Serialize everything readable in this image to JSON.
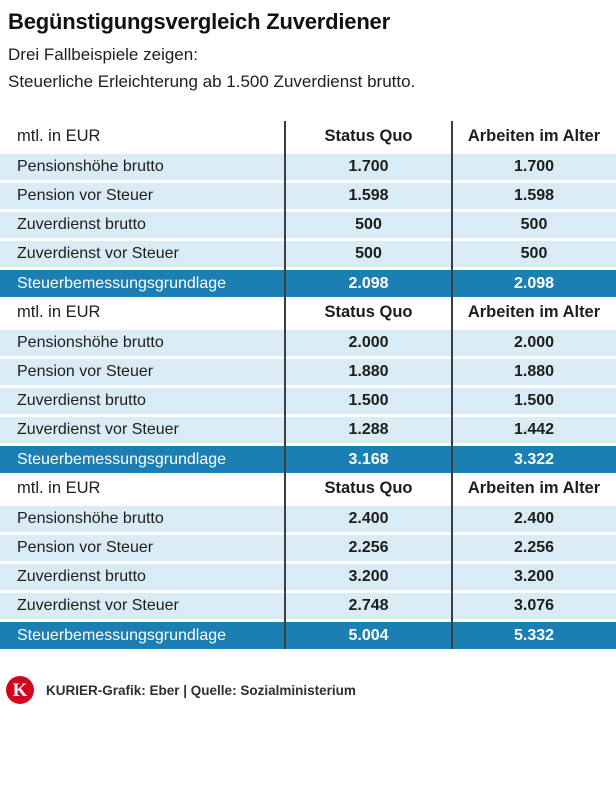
{
  "header": {
    "title": "Begünstigungsvergleich Zuverdiener",
    "subtitle_lines": [
      "Drei Fallbeispiele zeigen:",
      "Steuerliche Erleichterung ab 1.500 Zuverdienst brutto."
    ]
  },
  "columns": {
    "label": "mtl. in EUR",
    "col1": "Status Quo",
    "col2": "Arbeiten im Alter"
  },
  "tables": [
    {
      "rows": [
        {
          "label": "Pensionshöhe brutto",
          "values": [
            "1.700",
            "1.700"
          ]
        },
        {
          "label": "Pension vor Steuer",
          "values": [
            "1.598",
            "1.598"
          ]
        },
        {
          "label": "Zuverdienst brutto",
          "values": [
            "500",
            "500"
          ]
        },
        {
          "label": "Zuverdienst vor Steuer",
          "values": [
            "500",
            "500"
          ]
        },
        {
          "label": "Steuerbemessungsgrundlage",
          "values": [
            "2.098",
            "2.098"
          ]
        }
      ]
    },
    {
      "rows": [
        {
          "label": "Pensionshöhe brutto",
          "values": [
            "2.000",
            "2.000"
          ]
        },
        {
          "label": "Pension vor Steuer",
          "values": [
            "1.880",
            "1.880"
          ]
        },
        {
          "label": "Zuverdienst brutto",
          "values": [
            "1.500",
            "1.500"
          ]
        },
        {
          "label": "Zuverdienst vor Steuer",
          "values": [
            "1.288",
            "1.442"
          ]
        },
        {
          "label": "Steuerbemessungsgrundlage",
          "values": [
            "3.168",
            "3.322"
          ]
        }
      ]
    },
    {
      "rows": [
        {
          "label": "Pensionshöhe brutto",
          "values": [
            "2.400",
            "2.400"
          ]
        },
        {
          "label": "Pension vor Steuer",
          "values": [
            "2.256",
            "2.256"
          ]
        },
        {
          "label": "Zuverdienst brutto",
          "values": [
            "3.200",
            "3.200"
          ]
        },
        {
          "label": "Zuverdienst vor Steuer",
          "values": [
            "2.748",
            "3.076"
          ]
        },
        {
          "label": "Steuerbemessungsgrundlage",
          "values": [
            "5.004",
            "5.332"
          ]
        }
      ]
    }
  ],
  "chart_data": [
    {
      "type": "table",
      "title": "Fallbeispiel 1 (mtl. in EUR)",
      "columns": [
        "mtl. in EUR",
        "Status Quo",
        "Arbeiten im Alter"
      ],
      "rows": [
        [
          "Pensionshöhe brutto",
          1700,
          1700
        ],
        [
          "Pension vor Steuer",
          1598,
          1598
        ],
        [
          "Zuverdienst brutto",
          500,
          500
        ],
        [
          "Zuverdienst vor Steuer",
          500,
          500
        ],
        [
          "Steuerbemessungsgrundlage",
          2098,
          2098
        ]
      ],
      "highlight_row": "Steuerbemessungsgrundlage"
    },
    {
      "type": "table",
      "title": "Fallbeispiel 2 (mtl. in EUR)",
      "columns": [
        "mtl. in EUR",
        "Status Quo",
        "Arbeiten im Alter"
      ],
      "rows": [
        [
          "Pensionshöhe brutto",
          2000,
          2000
        ],
        [
          "Pension vor Steuer",
          1880,
          1880
        ],
        [
          "Zuverdienst brutto",
          1500,
          1500
        ],
        [
          "Zuverdienst vor Steuer",
          1288,
          1442
        ],
        [
          "Steuerbemessungsgrundlage",
          3168,
          3322
        ]
      ],
      "highlight_row": "Steuerbemessungsgrundlage"
    },
    {
      "type": "table",
      "title": "Fallbeispiel 3 (mtl. in EUR)",
      "columns": [
        "mtl. in EUR",
        "Status Quo",
        "Arbeiten im Alter"
      ],
      "rows": [
        [
          "Pensionshöhe brutto",
          2400,
          2400
        ],
        [
          "Pension vor Steuer",
          2256,
          2256
        ],
        [
          "Zuverdienst brutto",
          3200,
          3200
        ],
        [
          "Zuverdienst vor Steuer",
          2748,
          3076
        ],
        [
          "Steuerbemessungsgrundlage",
          5004,
          5332
        ]
      ],
      "highlight_row": "Steuerbemessungsgrundlage"
    }
  ],
  "footer": {
    "logo_letter": "K",
    "credit": "KURIER-Grafik: Eber | Quelle: Sozialministerium"
  },
  "colors": {
    "highlight_blue": "#1c7fb3",
    "stripe_blue": "#d9ecf6",
    "kurier_red": "#d2051e",
    "divider": "#3d3d3d"
  }
}
